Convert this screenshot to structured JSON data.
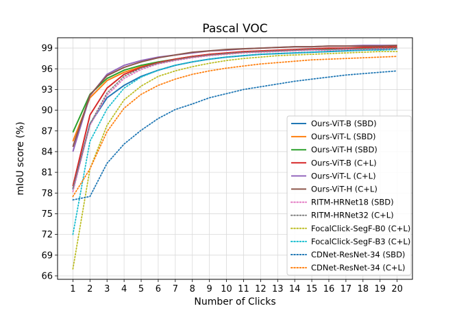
{
  "chart_data": {
    "type": "line",
    "title": "Pascal VOC",
    "xlabel": "Number of Clicks",
    "ylabel": "mIoU score (%)",
    "xlim": [
      0.1,
      20.9
    ],
    "ylim": [
      65.5,
      100.5
    ],
    "xticks": [
      1,
      2,
      3,
      4,
      5,
      6,
      7,
      8,
      9,
      10,
      11,
      12,
      13,
      14,
      15,
      16,
      17,
      18,
      19,
      20
    ],
    "yticks": [
      66,
      69,
      72,
      75,
      78,
      81,
      84,
      87,
      90,
      93,
      96,
      99
    ],
    "grid": true,
    "legend_position": "lower-right",
    "x": [
      1,
      2,
      3,
      4,
      5,
      6,
      7,
      8,
      9,
      10,
      11,
      12,
      13,
      14,
      15,
      16,
      17,
      18,
      19,
      20
    ],
    "series": [
      {
        "name": "Ours-ViT-B (SBD)",
        "color": "#1f77b4",
        "style": "solid",
        "values": [
          78.5,
          88.0,
          91.8,
          93.6,
          94.9,
          95.8,
          96.5,
          97.0,
          97.4,
          97.7,
          97.9,
          98.1,
          98.2,
          98.3,
          98.4,
          98.5,
          98.6,
          98.7,
          98.8,
          98.9
        ]
      },
      {
        "name": "Ours-ViT-L (SBD)",
        "color": "#ff7f0e",
        "style": "solid",
        "values": [
          85.5,
          91.8,
          94.3,
          95.5,
          96.3,
          96.9,
          97.4,
          97.7,
          98.0,
          98.2,
          98.4,
          98.5,
          98.6,
          98.7,
          98.8,
          98.9,
          99.0,
          99.0,
          99.1,
          99.1
        ]
      },
      {
        "name": "Ours-ViT-H (SBD)",
        "color": "#2ca02c",
        "style": "solid",
        "values": [
          86.8,
          92.3,
          94.6,
          95.8,
          96.5,
          97.0,
          97.4,
          97.8,
          98.0,
          98.2,
          98.4,
          98.5,
          98.6,
          98.7,
          98.8,
          98.8,
          98.9,
          99.0,
          99.0,
          99.1
        ]
      },
      {
        "name": "Ours-ViT-B (C+L)",
        "color": "#d62728",
        "style": "solid",
        "values": [
          79.0,
          89.3,
          93.2,
          95.2,
          96.2,
          96.9,
          97.4,
          97.8,
          98.1,
          98.3,
          98.5,
          98.6,
          98.7,
          98.8,
          98.9,
          99.0,
          99.0,
          99.1,
          99.1,
          99.2
        ]
      },
      {
        "name": "Ours-ViT-L (C+L)",
        "color": "#9467bd",
        "style": "solid",
        "values": [
          84.0,
          92.1,
          95.2,
          96.5,
          97.2,
          97.7,
          98.0,
          98.3,
          98.6,
          98.7,
          98.9,
          99.0,
          99.1,
          99.2,
          99.2,
          99.3,
          99.3,
          99.4,
          99.4,
          99.4
        ]
      },
      {
        "name": "Ours-ViT-H (C+L)",
        "color": "#8c564b",
        "style": "solid",
        "values": [
          84.7,
          92.2,
          95.0,
          96.2,
          97.0,
          97.6,
          98.0,
          98.4,
          98.6,
          98.8,
          98.9,
          99.0,
          99.1,
          99.2,
          99.2,
          99.3,
          99.3,
          99.3,
          99.3,
          99.4
        ]
      },
      {
        "name": "RITM-HRNet18 (SBD)",
        "color": "#e377c2",
        "style": "dotted",
        "values": [
          78.2,
          87.8,
          92.2,
          94.6,
          95.9,
          96.7,
          97.2,
          97.6,
          97.9,
          98.1,
          98.3,
          98.4,
          98.5,
          98.6,
          98.7,
          98.7,
          98.8,
          98.8,
          98.9,
          98.9
        ]
      },
      {
        "name": "RITM-HRNet32 (C+L)",
        "color": "#7f7f7f",
        "style": "dotted",
        "values": [
          78.7,
          88.0,
          92.5,
          94.9,
          96.1,
          96.8,
          97.3,
          97.7,
          98.0,
          98.2,
          98.4,
          98.5,
          98.6,
          98.7,
          98.8,
          98.8,
          98.9,
          98.9,
          99.0,
          99.0
        ]
      },
      {
        "name": "FocalClick-SegF-B0 (C+L)",
        "color": "#bcbd22",
        "style": "dotted",
        "values": [
          67.0,
          81.5,
          87.8,
          91.5,
          93.5,
          94.9,
          95.7,
          96.3,
          96.8,
          97.2,
          97.5,
          97.7,
          97.9,
          98.0,
          98.1,
          98.2,
          98.3,
          98.4,
          98.5,
          98.5
        ]
      },
      {
        "name": "FocalClick-SegF-B3 (C+L)",
        "color": "#17becf",
        "style": "dotted",
        "values": [
          72.0,
          85.5,
          90.2,
          93.2,
          94.8,
          95.8,
          96.5,
          97.0,
          97.4,
          97.7,
          97.9,
          98.1,
          98.2,
          98.3,
          98.4,
          98.5,
          98.6,
          98.7,
          98.7,
          98.8
        ]
      },
      {
        "name": "CDNet-ResNet-34 (SBD)",
        "color": "#1f77b4",
        "style": "dotted",
        "values": [
          77.0,
          77.5,
          82.3,
          85.1,
          87.1,
          88.8,
          90.1,
          90.9,
          91.8,
          92.4,
          93.0,
          93.4,
          93.8,
          94.2,
          94.5,
          94.8,
          95.1,
          95.3,
          95.5,
          95.7
        ]
      },
      {
        "name": "CDNet-ResNet-34 (C+L)",
        "color": "#ff7f0e",
        "style": "dotted",
        "values": [
          77.5,
          81.5,
          86.9,
          90.3,
          92.3,
          93.6,
          94.5,
          95.2,
          95.7,
          96.1,
          96.4,
          96.7,
          96.9,
          97.1,
          97.3,
          97.4,
          97.5,
          97.6,
          97.7,
          97.8
        ]
      }
    ]
  }
}
